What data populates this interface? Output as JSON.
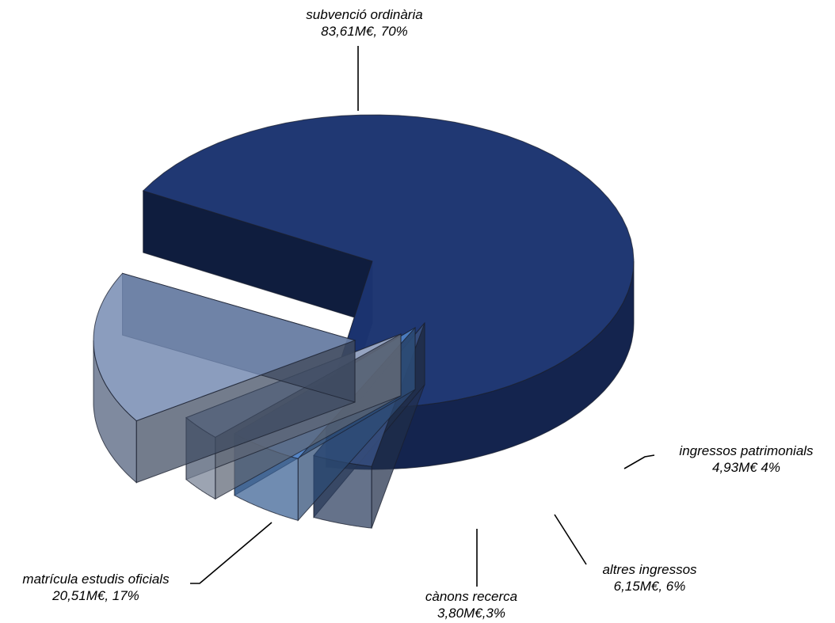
{
  "chart_data": {
    "type": "pie",
    "style": "3d-exploded",
    "title": "",
    "slices": [
      {
        "name": "subvenció ordinària",
        "amount": "83,61M€",
        "value": 83.61,
        "percent": 70,
        "pct_label": "70%",
        "sep": ", ",
        "color": "#1c3470"
      },
      {
        "name": "ingressos patrimonials",
        "amount": "4,93M€",
        "value": 4.93,
        "percent": 4,
        "pct_label": "4%",
        "sep": " ",
        "color": "#3b5485"
      },
      {
        "name": "altres ingressos",
        "amount": "6,15M€",
        "value": 6.15,
        "percent": 6,
        "pct_label": "6%",
        "sep": ", ",
        "color": "#5288d2"
      },
      {
        "name": "cànons recerca",
        "amount": "3,80M€",
        "value": 3.8,
        "percent": 3,
        "pct_label": "3%",
        "sep": ",",
        "color": "#a9b8d4"
      },
      {
        "name": "matrícula estudis oficials",
        "amount": "20,51M€",
        "value": 20.51,
        "percent": 17,
        "pct_label": "17%",
        "sep": ", ",
        "color": "#6e85ae"
      }
    ]
  }
}
